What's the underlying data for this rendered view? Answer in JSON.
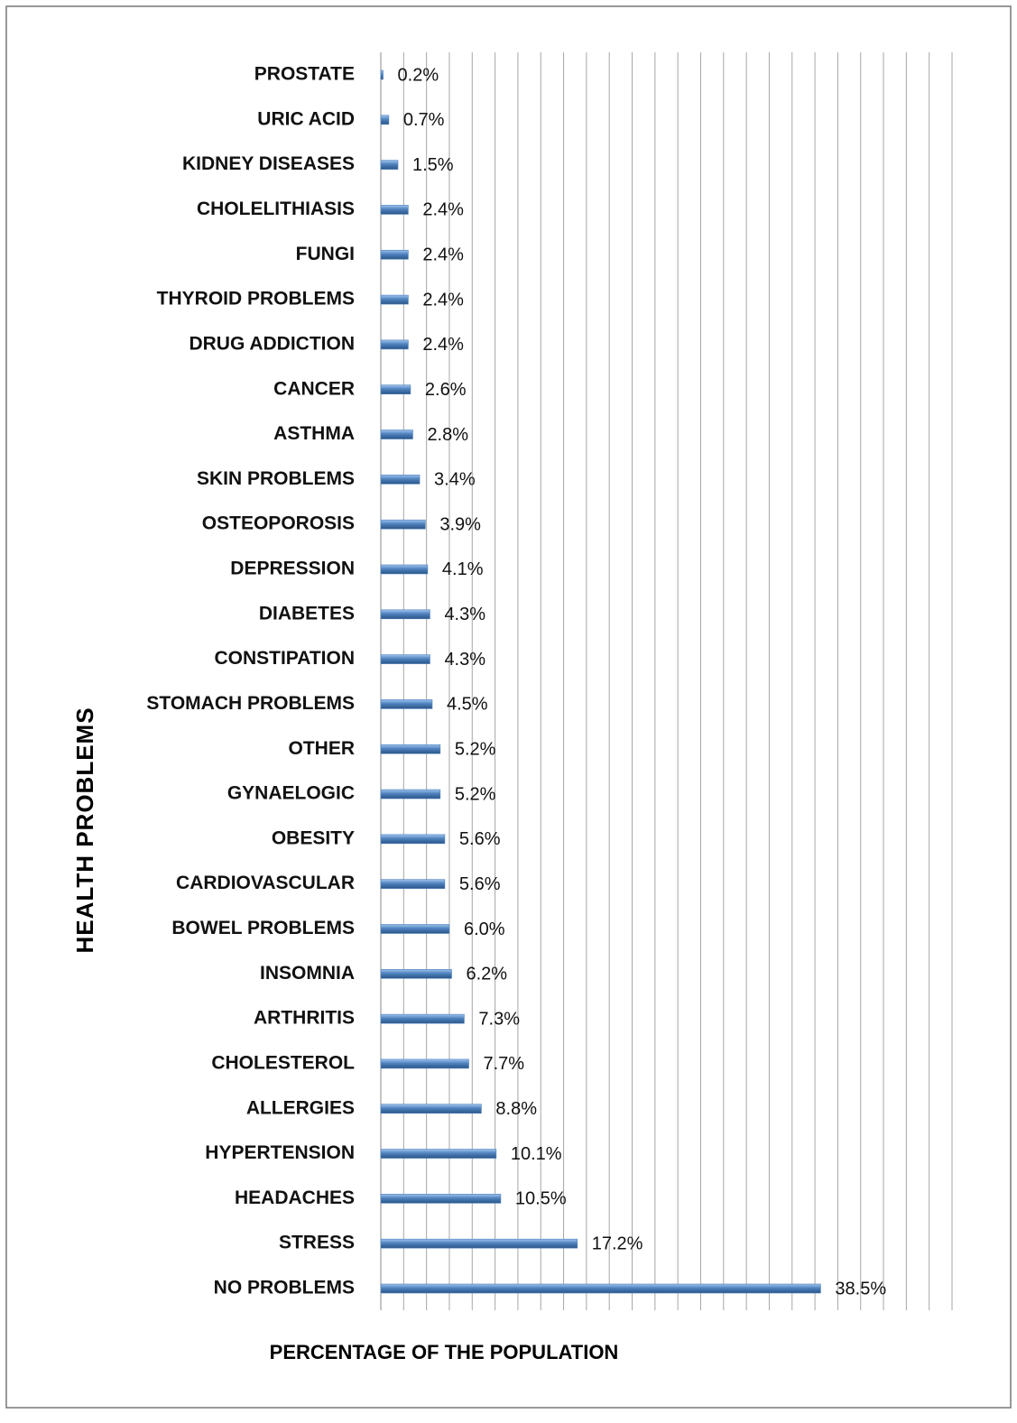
{
  "chart_data": {
    "type": "hbar",
    "ylabel": "HEALTH PROBLEMS",
    "xlabel": "PERCENTAGE OF THE POPULATION",
    "categories": [
      "PROSTATE",
      "URIC ACID",
      "KIDNEY DISEASES",
      "CHOLELITHIASIS",
      "FUNGI",
      "THYROID PROBLEMS",
      "DRUG ADDICTION",
      "CANCER",
      "ASTHMA",
      "SKIN PROBLEMS",
      "OSTEOPOROSIS",
      "DEPRESSION",
      "DIABETES",
      "CONSTIPATION",
      "STOMACH PROBLEMS",
      "OTHER",
      "GYNAELOGIC",
      "OBESITY",
      "CARDIOVASCULAR",
      "BOWEL PROBLEMS",
      "INSOMNIA",
      "ARTHRITIS",
      "CHOLESTEROL",
      "ALLERGIES",
      "HYPERTENSION",
      "HEADACHES",
      "STRESS",
      "NO PROBLEMS"
    ],
    "values": [
      0.2,
      0.7,
      1.5,
      2.4,
      2.4,
      2.4,
      2.4,
      2.6,
      2.8,
      3.4,
      3.9,
      4.1,
      4.3,
      4.3,
      4.5,
      5.2,
      5.2,
      5.6,
      5.6,
      6.0,
      6.2,
      7.3,
      7.7,
      8.8,
      10.1,
      10.5,
      17.2,
      38.5
    ],
    "value_labels": [
      "0.2%",
      "0.7%",
      "1.5%",
      "2.4%",
      "2.4%",
      "2.4%",
      "2.4%",
      "2.6%",
      "2.8%",
      "3.4%",
      "3.9%",
      "4.1%",
      "4.3%",
      "4.3%",
      "4.5%",
      "5.2%",
      "5.2%",
      "5.6%",
      "5.6%",
      "6.0%",
      "6.2%",
      "7.3%",
      "7.7%",
      "8.8%",
      "10.1%",
      "10.5%",
      "17.2%",
      "38.5%"
    ],
    "color": "#4f81bd",
    "xlim": [
      0,
      50
    ],
    "xticks": [
      0,
      2,
      4,
      6,
      8,
      10,
      12,
      14,
      16,
      18,
      20,
      22,
      24,
      26,
      28,
      30,
      32,
      34,
      36,
      38,
      40,
      42,
      44,
      46,
      48,
      50
    ],
    "tick_labels": false,
    "grid": true
  }
}
